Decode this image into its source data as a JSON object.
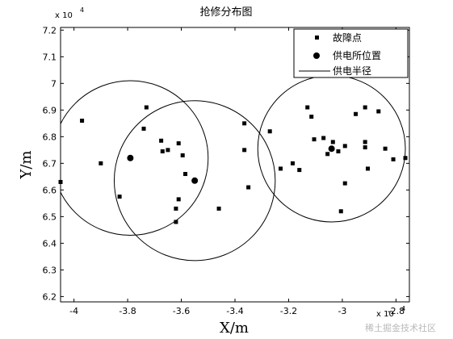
{
  "chart_data": {
    "type": "scatter",
    "title": "抢修分布图",
    "xlabel": "X/m",
    "ylabel": "Y/m",
    "x_exponent_label": "x 10",
    "y_exponent_label": "x 10",
    "exponent": "4",
    "xlim": [
      -4.05,
      -2.75
    ],
    "ylim": [
      6.18,
      7.21
    ],
    "xticks": [
      -4,
      -3.8,
      -3.6,
      -3.4,
      -3.2,
      -3,
      -2.8
    ],
    "xtick_labels": [
      "-4",
      "-3.8",
      "-3.6",
      "-3.4",
      "-3.2",
      "-3",
      "-2.8"
    ],
    "yticks": [
      6.2,
      6.3,
      6.4,
      6.5,
      6.6,
      6.7,
      6.8,
      6.9,
      7,
      7.1,
      7.2
    ],
    "ytick_labels": [
      "6.2",
      "6.3",
      "6.4",
      "6.5",
      "6.6",
      "6.7",
      "6.8",
      "6.9",
      "7",
      "7.1",
      "7.2"
    ],
    "grid": false,
    "legend_position": "top-right",
    "series": [
      {
        "name": "故障点",
        "marker": "square",
        "points": [
          [
            -4.05,
            6.63
          ],
          [
            -3.97,
            6.86
          ],
          [
            -3.9,
            6.7
          ],
          [
            -3.83,
            6.575
          ],
          [
            -3.74,
            6.83
          ],
          [
            -3.73,
            6.91
          ],
          [
            -3.675,
            6.785
          ],
          [
            -3.67,
            6.745
          ],
          [
            -3.65,
            6.75
          ],
          [
            -3.62,
            6.53
          ],
          [
            -3.62,
            6.48
          ],
          [
            -3.61,
            6.775
          ],
          [
            -3.61,
            6.565
          ],
          [
            -3.595,
            6.73
          ],
          [
            -3.585,
            6.66
          ],
          [
            -3.46,
            6.53
          ],
          [
            -3.365,
            6.85
          ],
          [
            -3.365,
            6.75
          ],
          [
            -3.35,
            6.61
          ],
          [
            -3.27,
            6.82
          ],
          [
            -3.23,
            6.68
          ],
          [
            -3.185,
            6.7
          ],
          [
            -3.16,
            6.675
          ],
          [
            -3.13,
            6.91
          ],
          [
            -3.115,
            6.875
          ],
          [
            -3.105,
            6.79
          ],
          [
            -3.07,
            6.795
          ],
          [
            -3.055,
            6.735
          ],
          [
            -3.035,
            6.78
          ],
          [
            -3.015,
            6.745
          ],
          [
            -3.005,
            6.52
          ],
          [
            -2.99,
            6.625
          ],
          [
            -2.99,
            6.765
          ],
          [
            -2.95,
            6.885
          ],
          [
            -2.915,
            6.91
          ],
          [
            -2.915,
            6.78
          ],
          [
            -2.915,
            6.76
          ],
          [
            -2.905,
            6.68
          ],
          [
            -2.865,
            6.895
          ],
          [
            -2.84,
            6.755
          ],
          [
            -2.81,
            6.715
          ],
          [
            -2.765,
            6.72
          ]
        ]
      },
      {
        "name": "供电所位置",
        "marker": "circle",
        "points": [
          [
            -3.79,
            6.72
          ],
          [
            -3.55,
            6.635
          ],
          [
            -3.04,
            6.755
          ]
        ]
      },
      {
        "name": "供电半径",
        "marker": "line",
        "circles": [
          {
            "cx": -3.79,
            "cy": 6.72,
            "r": 0.29
          },
          {
            "cx": -3.55,
            "cy": 6.635,
            "r": 0.3
          },
          {
            "cx": -3.04,
            "cy": 6.755,
            "r": 0.275
          }
        ]
      }
    ]
  },
  "watermark": "稀土掘金技术社区"
}
